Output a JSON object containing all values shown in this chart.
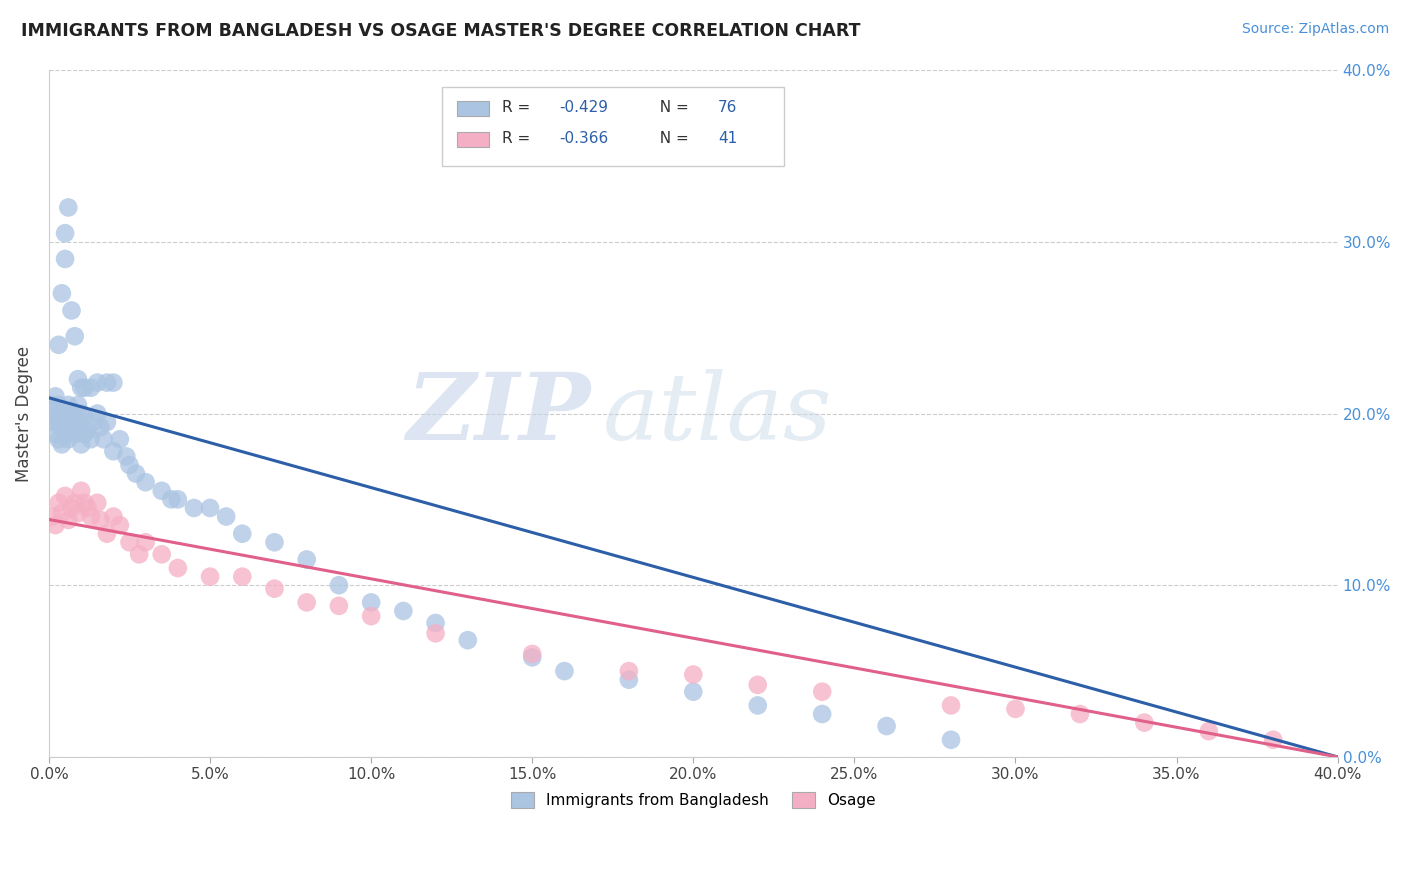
{
  "title": "IMMIGRANTS FROM BANGLADESH VS OSAGE MASTER'S DEGREE CORRELATION CHART",
  "source": "Source: ZipAtlas.com",
  "ylabel_left": "Master's Degree",
  "legend_label1": "Immigrants from Bangladesh",
  "legend_label2": "Osage",
  "r1": -0.429,
  "n1": 76,
  "r2": -0.366,
  "n2": 41,
  "color1": "#aac4e2",
  "color2": "#f5afc4",
  "line_color1": "#2d5fa8",
  "line_color2": "#e0608a",
  "xlim": [
    0.0,
    0.4
  ],
  "ylim": [
    0.0,
    0.4
  ],
  "watermark_zip": "ZIP",
  "watermark_atlas": "atlas",
  "background_color": "#ffffff",
  "grid_color": "#cccccc",
  "title_color": "#222222",
  "right_tick_color": "#4a90d9",
  "scatter1_x": [
    0.001,
    0.001,
    0.002,
    0.002,
    0.002,
    0.003,
    0.003,
    0.003,
    0.004,
    0.004,
    0.004,
    0.005,
    0.005,
    0.006,
    0.006,
    0.006,
    0.007,
    0.007,
    0.008,
    0.008,
    0.009,
    0.009,
    0.01,
    0.01,
    0.01,
    0.011,
    0.011,
    0.012,
    0.013,
    0.014,
    0.015,
    0.016,
    0.017,
    0.018,
    0.02,
    0.022,
    0.024,
    0.025,
    0.027,
    0.03,
    0.035,
    0.038,
    0.04,
    0.045,
    0.05,
    0.055,
    0.06,
    0.07,
    0.08,
    0.09,
    0.1,
    0.11,
    0.12,
    0.13,
    0.15,
    0.16,
    0.18,
    0.2,
    0.22,
    0.24,
    0.26,
    0.28,
    0.003,
    0.004,
    0.005,
    0.005,
    0.006,
    0.007,
    0.008,
    0.009,
    0.01,
    0.011,
    0.013,
    0.015,
    0.018,
    0.02
  ],
  "scatter1_y": [
    0.195,
    0.205,
    0.188,
    0.198,
    0.21,
    0.185,
    0.195,
    0.205,
    0.182,
    0.192,
    0.2,
    0.188,
    0.198,
    0.185,
    0.195,
    0.205,
    0.19,
    0.2,
    0.188,
    0.2,
    0.195,
    0.205,
    0.182,
    0.19,
    0.2,
    0.188,
    0.198,
    0.19,
    0.185,
    0.195,
    0.2,
    0.192,
    0.185,
    0.195,
    0.178,
    0.185,
    0.175,
    0.17,
    0.165,
    0.16,
    0.155,
    0.15,
    0.15,
    0.145,
    0.145,
    0.14,
    0.13,
    0.125,
    0.115,
    0.1,
    0.09,
    0.085,
    0.078,
    0.068,
    0.058,
    0.05,
    0.045,
    0.038,
    0.03,
    0.025,
    0.018,
    0.01,
    0.24,
    0.27,
    0.29,
    0.305,
    0.32,
    0.26,
    0.245,
    0.22,
    0.215,
    0.215,
    0.215,
    0.218,
    0.218,
    0.218
  ],
  "scatter2_x": [
    0.001,
    0.002,
    0.003,
    0.004,
    0.005,
    0.006,
    0.007,
    0.008,
    0.009,
    0.01,
    0.011,
    0.012,
    0.013,
    0.015,
    0.016,
    0.018,
    0.02,
    0.022,
    0.025,
    0.028,
    0.03,
    0.035,
    0.04,
    0.05,
    0.06,
    0.07,
    0.08,
    0.09,
    0.1,
    0.12,
    0.15,
    0.18,
    0.2,
    0.22,
    0.24,
    0.28,
    0.3,
    0.32,
    0.34,
    0.36,
    0.38
  ],
  "scatter2_y": [
    0.14,
    0.135,
    0.148,
    0.142,
    0.152,
    0.138,
    0.145,
    0.148,
    0.142,
    0.155,
    0.148,
    0.145,
    0.14,
    0.148,
    0.138,
    0.13,
    0.14,
    0.135,
    0.125,
    0.118,
    0.125,
    0.118,
    0.11,
    0.105,
    0.105,
    0.098,
    0.09,
    0.088,
    0.082,
    0.072,
    0.06,
    0.05,
    0.048,
    0.042,
    0.038,
    0.03,
    0.028,
    0.025,
    0.02,
    0.015,
    0.01
  ]
}
